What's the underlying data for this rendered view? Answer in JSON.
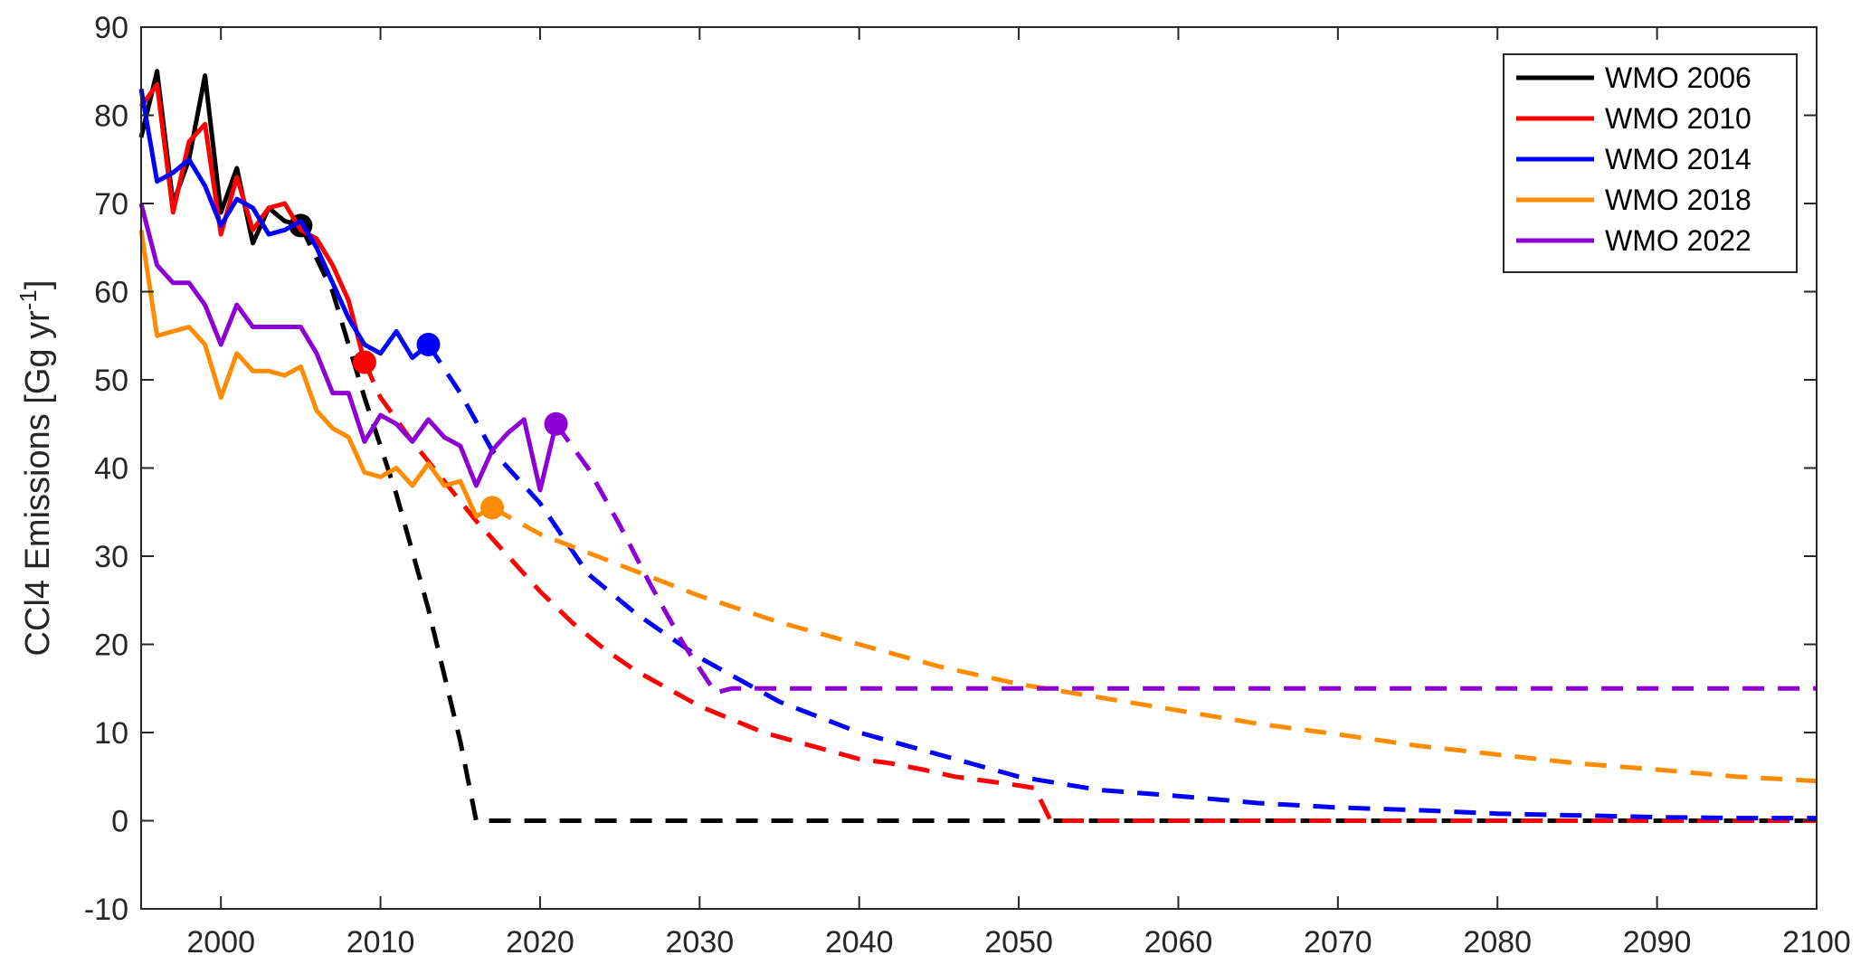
{
  "chart_data": {
    "type": "line",
    "xlabel": "",
    "ylabel": "CCl4 Emissions [Gg yr",
    "ylabel_superscript": "-1",
    "ylabel_suffix": "]",
    "xlim": [
      1995,
      2100
    ],
    "ylim": [
      -10,
      90
    ],
    "xticks": [
      2000,
      2010,
      2020,
      2030,
      2040,
      2050,
      2060,
      2070,
      2080,
      2090,
      2100
    ],
    "yticks": [
      -10,
      0,
      10,
      20,
      30,
      40,
      50,
      60,
      70,
      80,
      90
    ],
    "grid": false,
    "legend_position": "top-right",
    "series": [
      {
        "name": "WMO 2006",
        "color": "#000000",
        "observed": [
          [
            1995,
            77.5
          ],
          [
            1996,
            85
          ],
          [
            1997,
            70
          ],
          [
            1998,
            75
          ],
          [
            1999,
            84.5
          ],
          [
            2000,
            69
          ],
          [
            2001,
            74
          ],
          [
            2002,
            65.5
          ],
          [
            2003,
            69.5
          ],
          [
            2004,
            68
          ],
          [
            2005,
            67.5
          ]
        ],
        "projection": [
          [
            2005,
            67.5
          ],
          [
            2007,
            60
          ],
          [
            2009,
            48
          ],
          [
            2011,
            37
          ],
          [
            2013,
            24
          ],
          [
            2015,
            9
          ],
          [
            2016,
            0
          ],
          [
            2100,
            0
          ]
        ],
        "marker": [
          2005,
          67.5
        ]
      },
      {
        "name": "WMO 2010",
        "color": "#ff0000",
        "observed": [
          [
            1995,
            81
          ],
          [
            1996,
            83.5
          ],
          [
            1997,
            69
          ],
          [
            1998,
            77
          ],
          [
            1999,
            79
          ],
          [
            2000,
            66.5
          ],
          [
            2001,
            73
          ],
          [
            2002,
            67
          ],
          [
            2003,
            69.5
          ],
          [
            2004,
            70
          ],
          [
            2005,
            67
          ],
          [
            2006,
            66
          ],
          [
            2007,
            63
          ],
          [
            2008,
            59
          ],
          [
            2009,
            52
          ]
        ],
        "projection": [
          [
            2009,
            52
          ],
          [
            2010,
            48
          ],
          [
            2012,
            43
          ],
          [
            2014,
            38.5
          ],
          [
            2016,
            34
          ],
          [
            2018,
            30
          ],
          [
            2020,
            26
          ],
          [
            2022,
            22.5
          ],
          [
            2024,
            19.5
          ],
          [
            2026,
            17
          ],
          [
            2028,
            15
          ],
          [
            2030,
            13
          ],
          [
            2032,
            11.5
          ],
          [
            2034,
            10
          ],
          [
            2036,
            9
          ],
          [
            2038,
            8
          ],
          [
            2040,
            7
          ],
          [
            2042,
            6.5
          ],
          [
            2044,
            5.8
          ],
          [
            2046,
            5
          ],
          [
            2048,
            4.5
          ],
          [
            2050,
            4
          ],
          [
            2051,
            3.7
          ],
          [
            2052,
            0
          ],
          [
            2100,
            0
          ]
        ],
        "marker": [
          2009,
          52
        ]
      },
      {
        "name": "WMO 2014",
        "color": "#0000ff",
        "observed": [
          [
            1995,
            83
          ],
          [
            1996,
            72.5
          ],
          [
            1997,
            73.5
          ],
          [
            1998,
            75
          ],
          [
            1999,
            72
          ],
          [
            2000,
            67.5
          ],
          [
            2001,
            70.5
          ],
          [
            2002,
            69.5
          ],
          [
            2003,
            66.5
          ],
          [
            2004,
            67
          ],
          [
            2005,
            68
          ],
          [
            2006,
            65
          ],
          [
            2007,
            61
          ],
          [
            2008,
            57
          ],
          [
            2009,
            54
          ],
          [
            2010,
            53
          ],
          [
            2011,
            55.5
          ],
          [
            2012,
            52.5
          ],
          [
            2013,
            54
          ]
        ],
        "projection": [
          [
            2013,
            54
          ],
          [
            2015,
            48.5
          ],
          [
            2017,
            42
          ],
          [
            2020,
            36
          ],
          [
            2023,
            28
          ],
          [
            2026,
            23.5
          ],
          [
            2030,
            18.5
          ],
          [
            2035,
            13.5
          ],
          [
            2040,
            10
          ],
          [
            2045,
            7.5
          ],
          [
            2050,
            5
          ],
          [
            2055,
            3.5
          ],
          [
            2060,
            2.8
          ],
          [
            2065,
            2
          ],
          [
            2070,
            1.5
          ],
          [
            2075,
            1.2
          ],
          [
            2080,
            0.8
          ],
          [
            2085,
            0.6
          ],
          [
            2090,
            0.4
          ],
          [
            2095,
            0.3
          ],
          [
            2100,
            0.3
          ]
        ],
        "marker": [
          2013,
          54
        ]
      },
      {
        "name": "WMO 2018",
        "color": "#ff8c00",
        "observed": [
          [
            1995,
            67
          ],
          [
            1996,
            55
          ],
          [
            1997,
            55.5
          ],
          [
            1998,
            56
          ],
          [
            1999,
            54
          ],
          [
            2000,
            48
          ],
          [
            2001,
            53
          ],
          [
            2002,
            51
          ],
          [
            2003,
            51
          ],
          [
            2004,
            50.5
          ],
          [
            2005,
            51.5
          ],
          [
            2006,
            46.5
          ],
          [
            2007,
            44.5
          ],
          [
            2008,
            43.5
          ],
          [
            2009,
            39.5
          ],
          [
            2010,
            39
          ],
          [
            2011,
            40
          ],
          [
            2012,
            38
          ],
          [
            2013,
            40.5
          ],
          [
            2014,
            38
          ],
          [
            2015,
            38.5
          ],
          [
            2016,
            34.5
          ],
          [
            2017,
            35.5
          ]
        ],
        "projection": [
          [
            2017,
            35.5
          ],
          [
            2020,
            32.5
          ],
          [
            2025,
            29
          ],
          [
            2030,
            25.5
          ],
          [
            2035,
            22.5
          ],
          [
            2040,
            20
          ],
          [
            2045,
            17.5
          ],
          [
            2050,
            15.5
          ],
          [
            2055,
            14
          ],
          [
            2060,
            12.5
          ],
          [
            2065,
            11
          ],
          [
            2070,
            9.8
          ],
          [
            2075,
            8.5
          ],
          [
            2080,
            7.5
          ],
          [
            2085,
            6.5
          ],
          [
            2090,
            5.8
          ],
          [
            2095,
            5
          ],
          [
            2100,
            4.5
          ]
        ],
        "marker": [
          2017,
          35.5
        ]
      },
      {
        "name": "WMO 2022",
        "color": "#8c00d4",
        "observed": [
          [
            1995,
            70
          ],
          [
            1996,
            63
          ],
          [
            1997,
            61
          ],
          [
            1998,
            61
          ],
          [
            1999,
            58.5
          ],
          [
            2000,
            54
          ],
          [
            2001,
            58.5
          ],
          [
            2002,
            56
          ],
          [
            2003,
            56
          ],
          [
            2004,
            56
          ],
          [
            2005,
            56
          ],
          [
            2006,
            53
          ],
          [
            2007,
            48.5
          ],
          [
            2008,
            48.5
          ],
          [
            2009,
            43
          ],
          [
            2010,
            46
          ],
          [
            2011,
            45
          ],
          [
            2012,
            43
          ],
          [
            2013,
            45.5
          ],
          [
            2014,
            43.5
          ],
          [
            2015,
            42.5
          ],
          [
            2016,
            38
          ],
          [
            2017,
            42
          ],
          [
            2018,
            44
          ],
          [
            2019,
            45.5
          ],
          [
            2020,
            37.5
          ],
          [
            2021,
            45
          ]
        ],
        "projection": [
          [
            2021,
            45
          ],
          [
            2023,
            40
          ],
          [
            2025,
            33.5
          ],
          [
            2027,
            26.5
          ],
          [
            2029,
            20
          ],
          [
            2031,
            14.5
          ],
          [
            2032,
            15
          ],
          [
            2035,
            15
          ],
          [
            2040,
            15
          ],
          [
            2045,
            15
          ],
          [
            2050,
            15
          ],
          [
            2060,
            15
          ],
          [
            2070,
            15
          ],
          [
            2080,
            15
          ],
          [
            2090,
            15
          ],
          [
            2100,
            15
          ]
        ],
        "marker": [
          2021,
          45
        ]
      }
    ]
  }
}
